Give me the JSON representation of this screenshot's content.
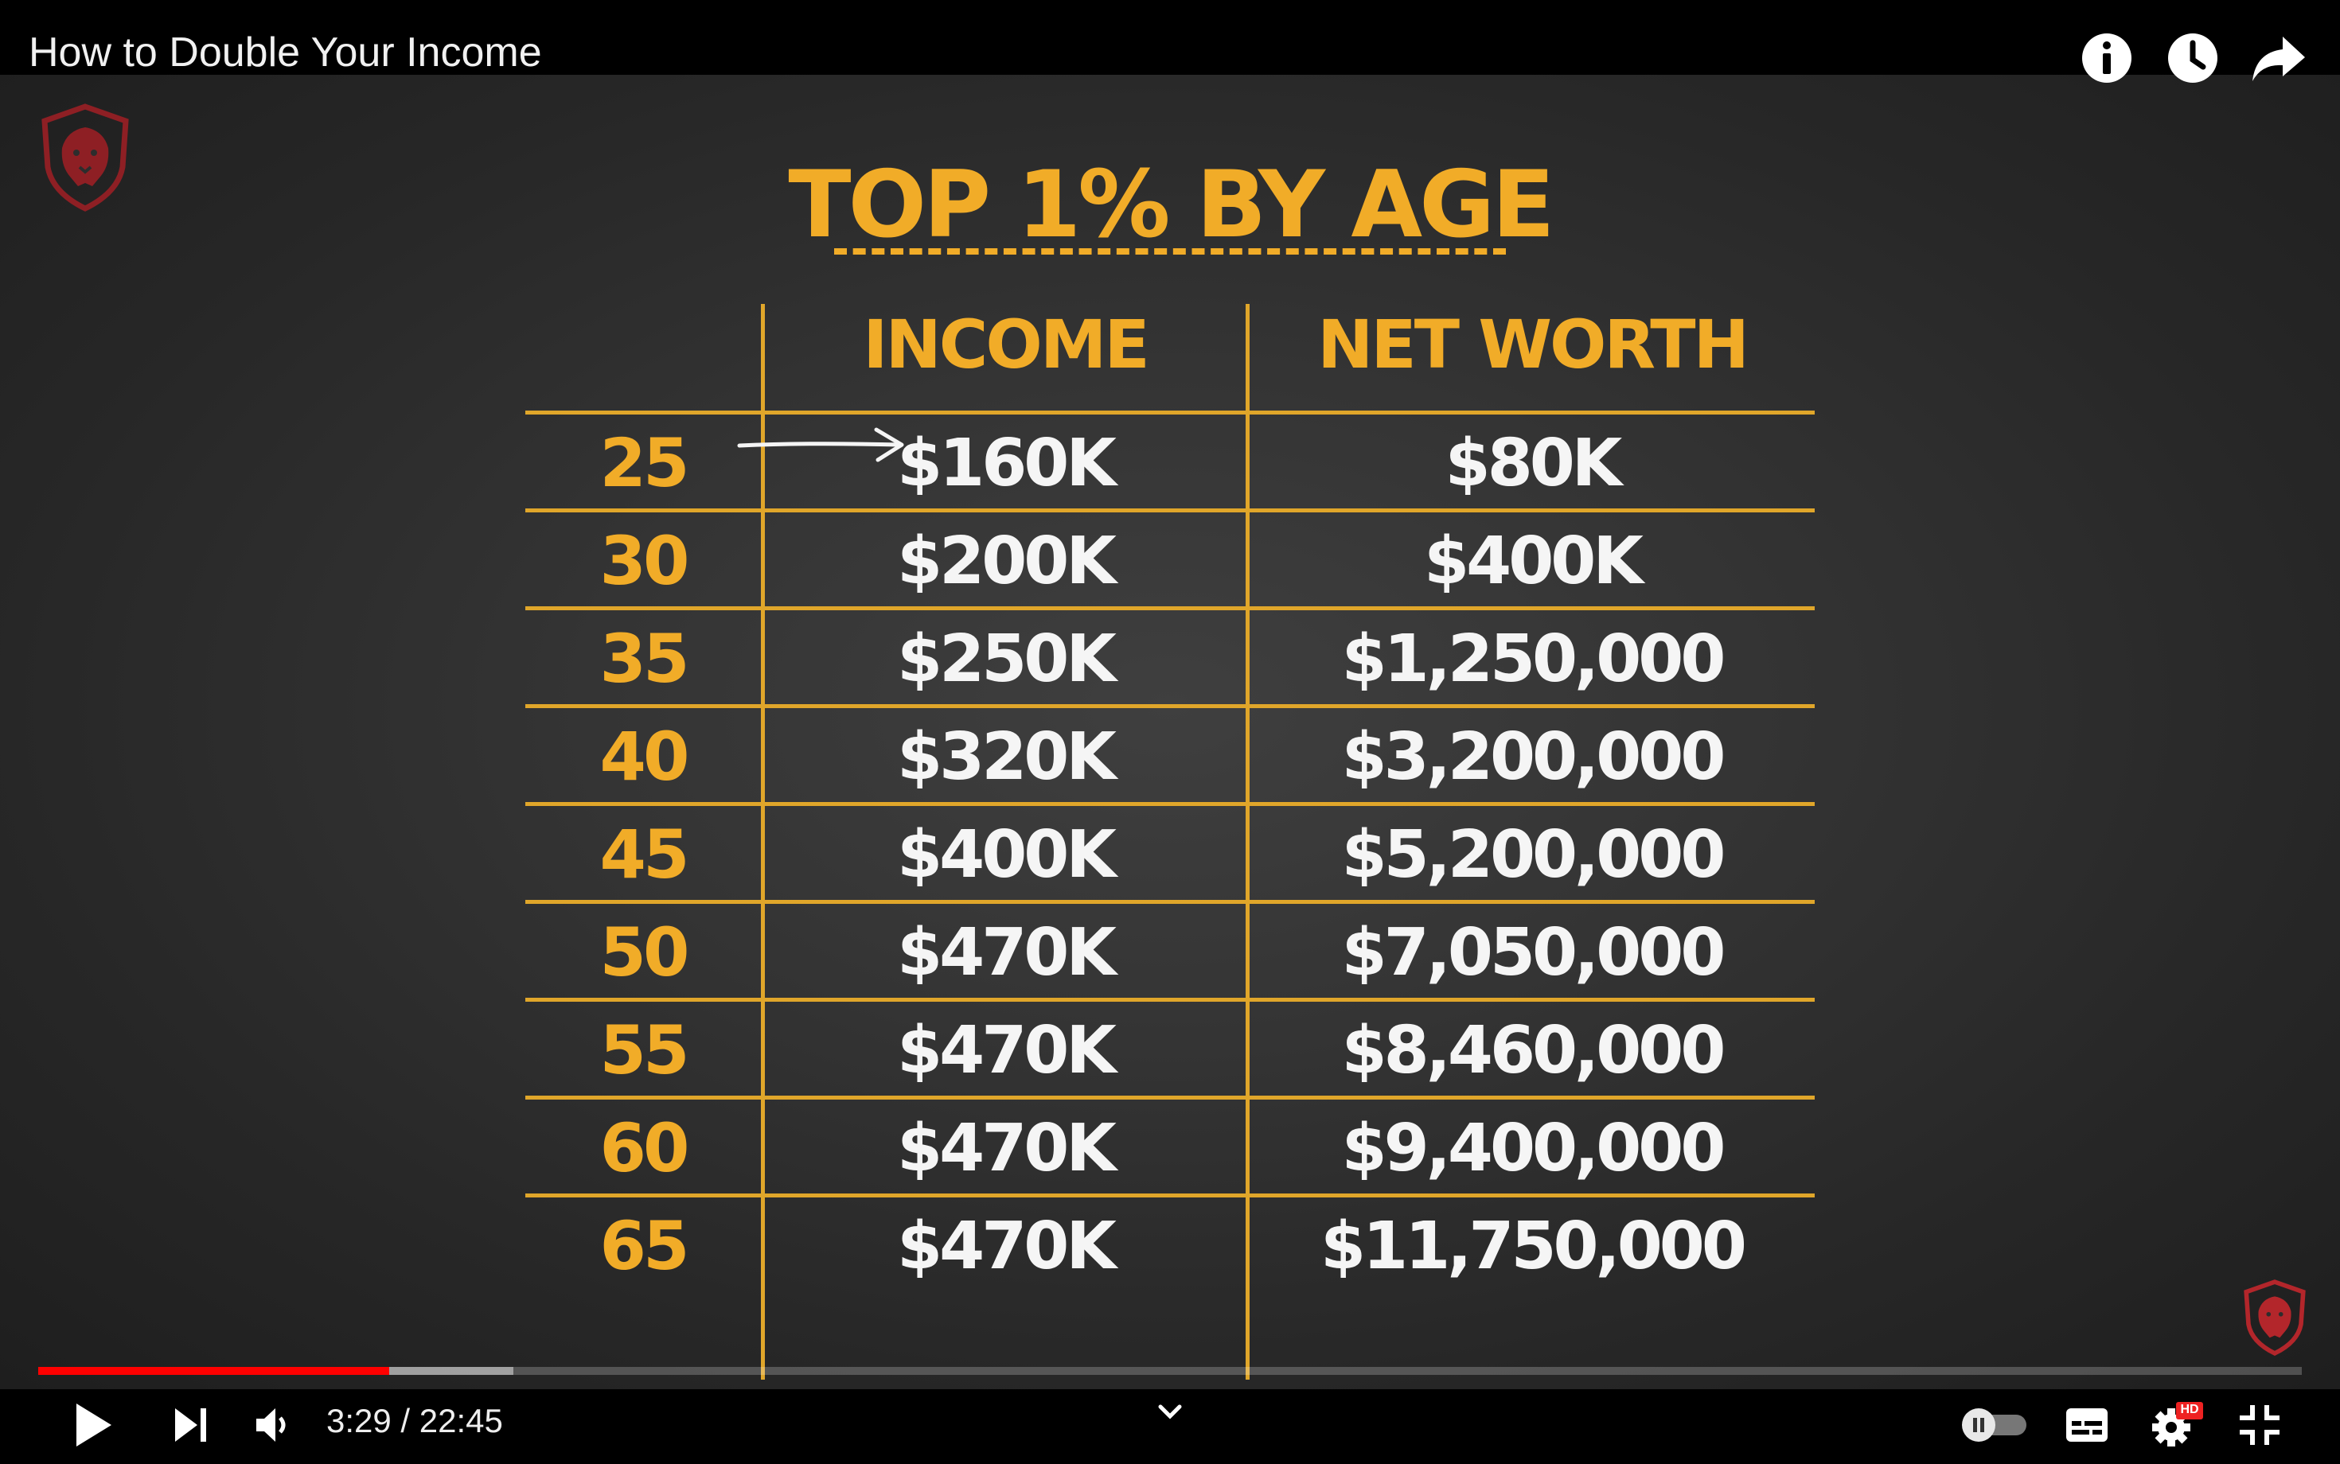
{
  "window": {
    "title": "How to Double Your Income"
  },
  "top_icons": [
    "info-icon",
    "watch-later-icon",
    "share-icon"
  ],
  "slide": {
    "heading": "TOP 1% BY AGE",
    "columns": [
      "INCOME",
      "NET WORTH"
    ],
    "rows": [
      {
        "age": "25",
        "income": "$160K",
        "net_worth": "$80K"
      },
      {
        "age": "30",
        "income": "$200K",
        "net_worth": "$400K"
      },
      {
        "age": "35",
        "income": "$250K",
        "net_worth": "$1,250,000"
      },
      {
        "age": "40",
        "income": "$320K",
        "net_worth": "$3,200,000"
      },
      {
        "age": "45",
        "income": "$400K",
        "net_worth": "$5,200,000"
      },
      {
        "age": "50",
        "income": "$470K",
        "net_worth": "$7,050,000"
      },
      {
        "age": "55",
        "income": "$470K",
        "net_worth": "$8,460,000"
      },
      {
        "age": "60",
        "income": "$470K",
        "net_worth": "$9,400,000"
      },
      {
        "age": "65",
        "income": "$470K",
        "net_worth": "$11,750,000"
      }
    ],
    "colors": {
      "accent": "#f1ac28",
      "cell_text": "#f5f5f5",
      "logo_red": "#b3262b"
    }
  },
  "player": {
    "time_display": "3:29 / 22:45",
    "played_fraction": 0.155,
    "buffered_fraction": 0.21,
    "progress_color": "#ff0000",
    "quality_badge": "HD",
    "controls": [
      "play-icon",
      "next-icon",
      "volume-icon",
      "chevron-down-icon",
      "autoplay-toggle",
      "subtitles-icon",
      "settings-icon",
      "exit-fullscreen-icon"
    ]
  }
}
